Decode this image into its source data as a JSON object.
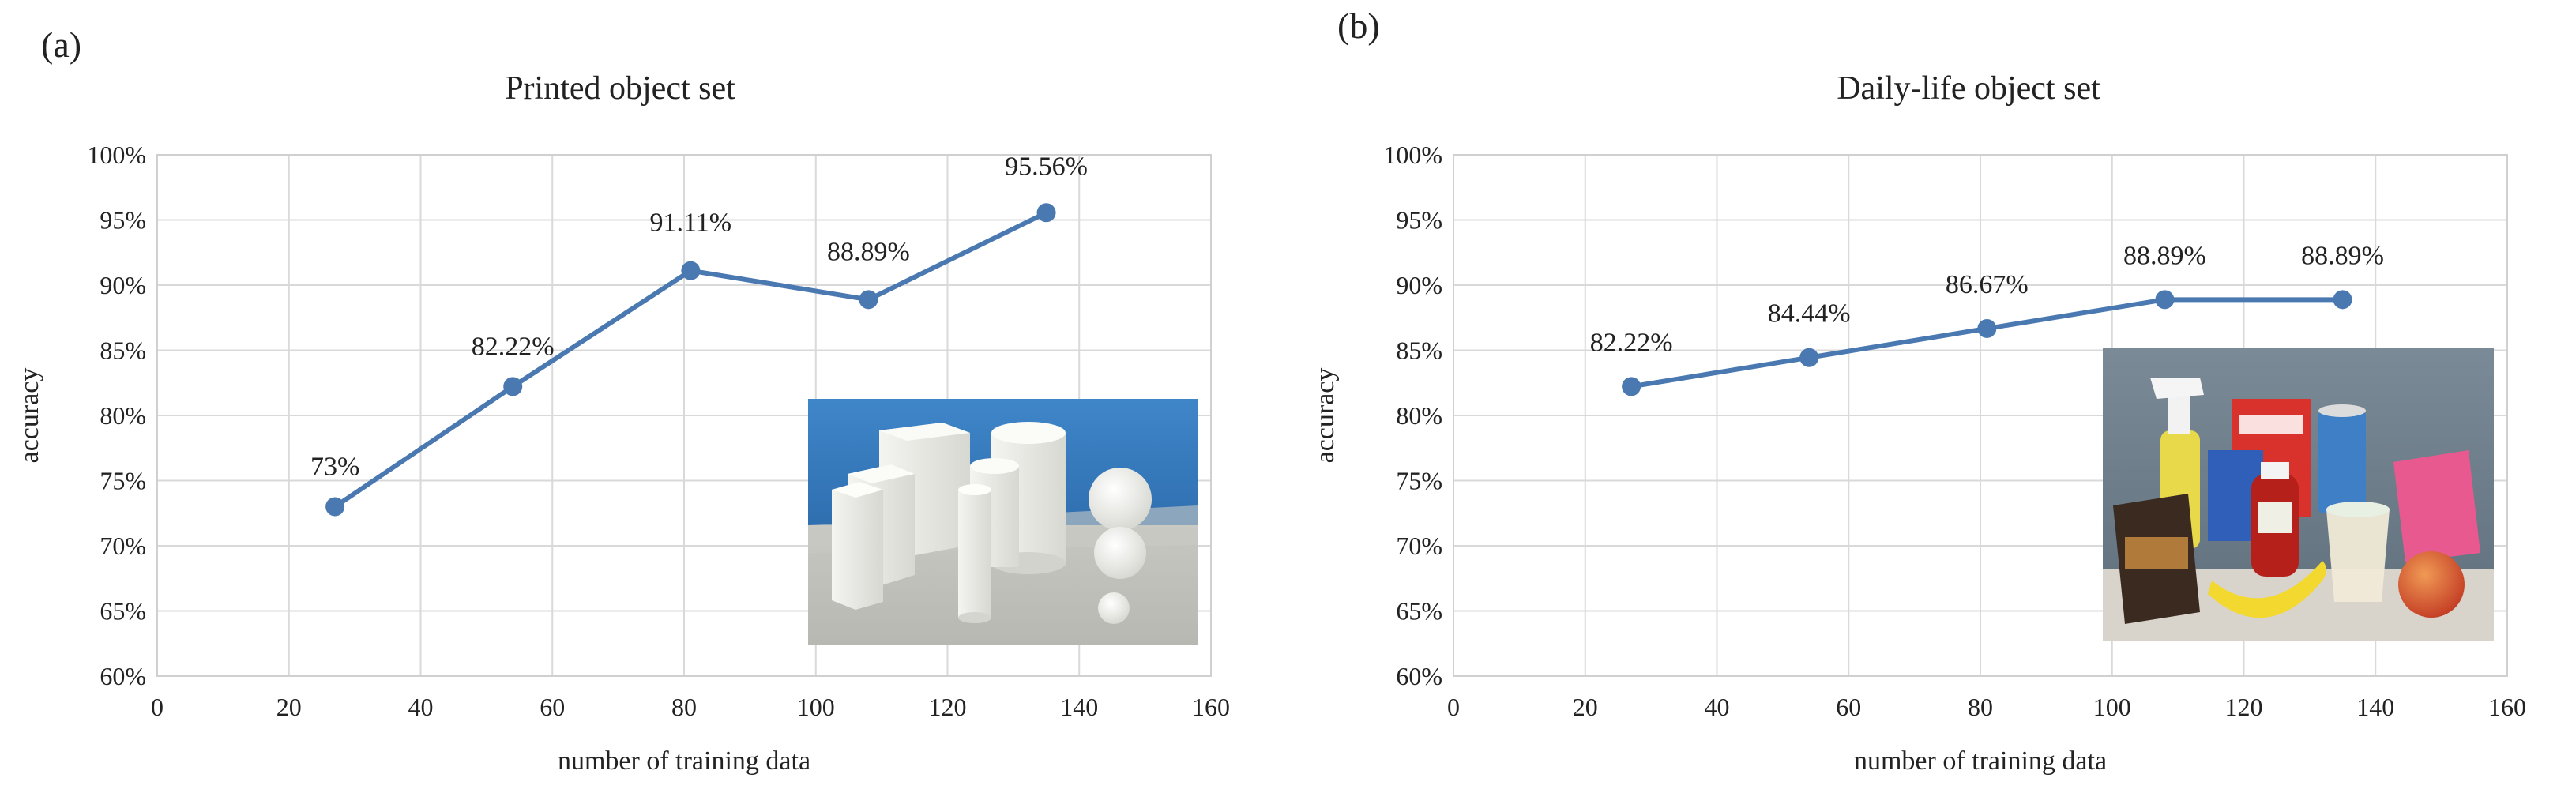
{
  "chart_data": [
    {
      "type": "line",
      "panel_label": "(a)",
      "title": "Printed object set",
      "xlabel": "number of training data",
      "ylabel": "accuracy",
      "xlim": [
        0,
        160
      ],
      "ylim": [
        60,
        100
      ],
      "x_ticks": [
        "0",
        "20",
        "40",
        "60",
        "80",
        "100",
        "120",
        "140",
        "160"
      ],
      "y_ticks": [
        "60%",
        "65%",
        "70%",
        "75%",
        "80%",
        "85%",
        "90%",
        "95%",
        "100%"
      ],
      "grid": true,
      "series": [
        {
          "name": "accuracy",
          "x": [
            27,
            54,
            81,
            108,
            135
          ],
          "y": [
            73,
            82.22,
            91.11,
            88.89,
            95.56
          ],
          "labels": [
            "73%",
            "82.22%",
            "91.11%",
            "88.89%",
            "95.56%"
          ]
        }
      ],
      "color": "#4a78b0",
      "inset_photo": "printed-shapes-photo"
    },
    {
      "type": "line",
      "panel_label": "(b)",
      "title": "Daily-life object set",
      "xlabel": "number of training data",
      "ylabel": "accuracy",
      "xlim": [
        0,
        160
      ],
      "ylim": [
        60,
        100
      ],
      "x_ticks": [
        "0",
        "20",
        "40",
        "60",
        "80",
        "100",
        "120",
        "140",
        "160"
      ],
      "y_ticks": [
        "60%",
        "65%",
        "70%",
        "75%",
        "80%",
        "85%",
        "90%",
        "95%",
        "100%"
      ],
      "grid": true,
      "series": [
        {
          "name": "accuracy",
          "x": [
            27,
            54,
            81,
            108,
            135
          ],
          "y": [
            82.22,
            84.44,
            86.67,
            88.89,
            88.89
          ],
          "labels": [
            "82.22%",
            "84.44%",
            "86.67%",
            "88.89%",
            "88.89%"
          ]
        }
      ],
      "color": "#4a78b0",
      "inset_photo": "daily-objects-photo"
    }
  ]
}
